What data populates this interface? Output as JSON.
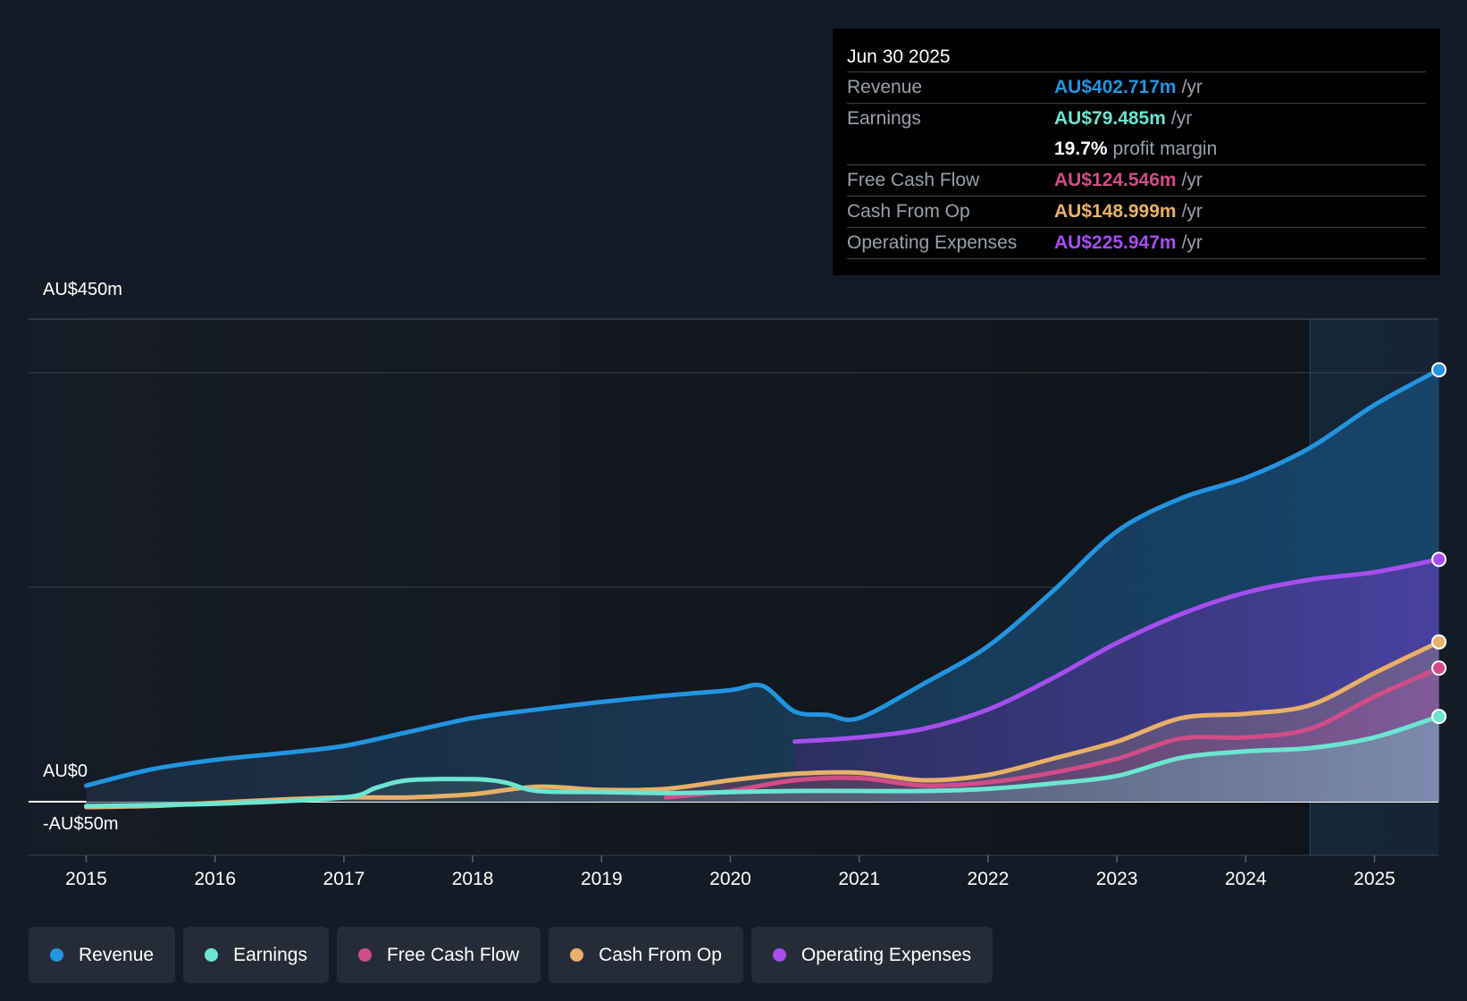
{
  "tooltip": {
    "date": "Jun 30 2025",
    "rows": [
      {
        "label": "Revenue",
        "value": "AU$402.717m",
        "unit": "/yr",
        "color": "#2394df"
      },
      {
        "label": "Earnings",
        "value": "AU$79.485m",
        "unit": "/yr",
        "color": "#6ce5d1"
      },
      {
        "margin_value": "19.7%",
        "margin_text": "profit margin"
      },
      {
        "label": "Free Cash Flow",
        "value": "AU$124.546m",
        "unit": "/yr",
        "color": "#d14d87"
      },
      {
        "label": "Cash From Op",
        "value": "AU$148.999m",
        "unit": "/yr",
        "color": "#e8b068"
      },
      {
        "label": "Operating Expenses",
        "value": "AU$225.947m",
        "unit": "/yr",
        "color": "#a64ef0"
      }
    ]
  },
  "chart_data": {
    "type": "area",
    "title": "",
    "xlabel": "",
    "ylabel": "",
    "ylim": [
      -50,
      450
    ],
    "y_axis_labels": [
      "AU$450m",
      "AU$0",
      "-AU$50m"
    ],
    "x_ticks": [
      "2015",
      "2016",
      "2017",
      "2018",
      "2019",
      "2020",
      "2021",
      "2022",
      "2023",
      "2024",
      "2025"
    ],
    "forecast_start": 2024.5,
    "series": [
      {
        "name": "Revenue",
        "color": "#2394df",
        "points": [
          [
            2015.0,
            15
          ],
          [
            2015.5,
            30
          ],
          [
            2016.0,
            39
          ],
          [
            2016.5,
            45
          ],
          [
            2017.0,
            52
          ],
          [
            2017.5,
            65
          ],
          [
            2018.0,
            78
          ],
          [
            2018.5,
            86
          ],
          [
            2019.0,
            93
          ],
          [
            2019.5,
            99
          ],
          [
            2020.0,
            104
          ],
          [
            2020.25,
            108
          ],
          [
            2020.5,
            84
          ],
          [
            2020.75,
            81
          ],
          [
            2021.0,
            78
          ],
          [
            2021.5,
            110
          ],
          [
            2022.0,
            145
          ],
          [
            2022.5,
            196
          ],
          [
            2023.0,
            252
          ],
          [
            2023.5,
            283
          ],
          [
            2024.0,
            302
          ],
          [
            2024.5,
            330
          ],
          [
            2025.0,
            370
          ],
          [
            2025.5,
            402.717
          ]
        ]
      },
      {
        "name": "Operating Expenses",
        "color": "#a64ef0",
        "points": [
          [
            2020.5,
            56
          ],
          [
            2021.0,
            60
          ],
          [
            2021.5,
            68
          ],
          [
            2022.0,
            86
          ],
          [
            2022.5,
            115
          ],
          [
            2023.0,
            148
          ],
          [
            2023.5,
            175
          ],
          [
            2024.0,
            195
          ],
          [
            2024.5,
            207
          ],
          [
            2025.0,
            214
          ],
          [
            2025.5,
            225.947
          ]
        ]
      },
      {
        "name": "Cash From Op",
        "color": "#e8b068",
        "points": [
          [
            2015.0,
            -5
          ],
          [
            2015.5,
            -4
          ],
          [
            2016.0,
            -1
          ],
          [
            2016.5,
            2
          ],
          [
            2017.0,
            4
          ],
          [
            2017.5,
            4
          ],
          [
            2018.0,
            7
          ],
          [
            2018.5,
            14
          ],
          [
            2019.0,
            11
          ],
          [
            2019.5,
            12
          ],
          [
            2020.0,
            20
          ],
          [
            2020.5,
            26
          ],
          [
            2021.0,
            27
          ],
          [
            2021.5,
            20
          ],
          [
            2022.0,
            25
          ],
          [
            2022.5,
            40
          ],
          [
            2023.0,
            56
          ],
          [
            2023.5,
            78
          ],
          [
            2024.0,
            82
          ],
          [
            2024.5,
            90
          ],
          [
            2025.0,
            120
          ],
          [
            2025.5,
            148.999
          ]
        ]
      },
      {
        "name": "Free Cash Flow",
        "color": "#d14d87",
        "points": [
          [
            2019.5,
            4
          ],
          [
            2020.0,
            10
          ],
          [
            2020.5,
            20
          ],
          [
            2021.0,
            22
          ],
          [
            2021.5,
            15
          ],
          [
            2022.0,
            18
          ],
          [
            2022.5,
            27
          ],
          [
            2023.0,
            40
          ],
          [
            2023.5,
            59
          ],
          [
            2024.0,
            60
          ],
          [
            2024.5,
            68
          ],
          [
            2025.0,
            98
          ],
          [
            2025.5,
            124.546
          ]
        ]
      },
      {
        "name": "Earnings",
        "color": "#6ce5d1",
        "points": [
          [
            2015.0,
            -4
          ],
          [
            2016.0,
            -2
          ],
          [
            2017.0,
            4
          ],
          [
            2017.25,
            13
          ],
          [
            2017.5,
            20
          ],
          [
            2018.0,
            21
          ],
          [
            2018.25,
            18
          ],
          [
            2018.5,
            10
          ],
          [
            2019.0,
            9
          ],
          [
            2019.5,
            8
          ],
          [
            2020.0,
            9
          ],
          [
            2020.5,
            10
          ],
          [
            2021.0,
            10
          ],
          [
            2021.5,
            10
          ],
          [
            2022.0,
            12
          ],
          [
            2022.5,
            17
          ],
          [
            2023.0,
            24
          ],
          [
            2023.5,
            41
          ],
          [
            2024.0,
            47
          ],
          [
            2024.5,
            50
          ],
          [
            2025.0,
            60
          ],
          [
            2025.5,
            79.485
          ]
        ]
      }
    ]
  },
  "legend": [
    {
      "label": "Revenue",
      "color": "#2394df"
    },
    {
      "label": "Earnings",
      "color": "#6ce5d1"
    },
    {
      "label": "Free Cash Flow",
      "color": "#d14d87"
    },
    {
      "label": "Cash From Op",
      "color": "#e8b068"
    },
    {
      "label": "Operating Expenses",
      "color": "#a64ef0"
    }
  ]
}
